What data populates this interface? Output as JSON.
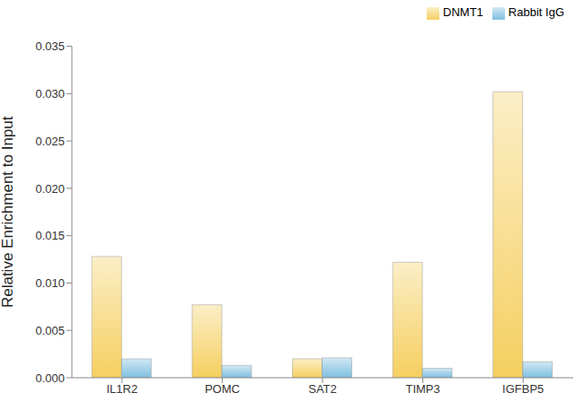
{
  "chart_data": {
    "type": "bar",
    "y_label": "Relative Enrichment to Input",
    "categories": [
      "IL1R2",
      "POMC",
      "SAT2",
      "TIMP3",
      "IGFBP5"
    ],
    "series": [
      {
        "name": "DNMT1",
        "color": "#f5cf5f",
        "values": [
          0.0128,
          0.0077,
          0.002,
          0.0122,
          0.0302
        ]
      },
      {
        "name": "Rabbit IgG",
        "color": "#7dbfdf",
        "values": [
          0.002,
          0.0013,
          0.0021,
          0.001,
          0.0017
        ]
      }
    ],
    "ylim": [
      0,
      0.035
    ],
    "yticks": [
      {
        "value": 0,
        "label": "0.000"
      },
      {
        "value": 0.005,
        "label": "0.005"
      },
      {
        "value": 0.01,
        "label": "0.010"
      },
      {
        "value": 0.015,
        "label": "0.015"
      },
      {
        "value": 0.02,
        "label": "0.020"
      },
      {
        "value": 0.025,
        "label": "0.025"
      },
      {
        "value": 0.03,
        "label": "0.030"
      },
      {
        "value": 0.035,
        "label": "0.035"
      }
    ],
    "grid": false,
    "legend": "top-right"
  }
}
